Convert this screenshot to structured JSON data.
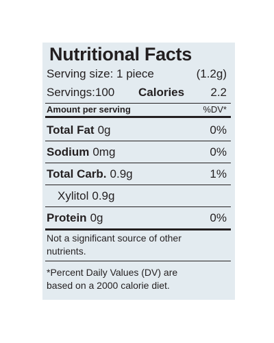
{
  "title": "Nutritional Facts",
  "serving": {
    "size": "Serving size: 1 piece",
    "weight": "(1.2g)",
    "servings": "Servings:100",
    "calories_label": "Calories",
    "calories_value": "2.2"
  },
  "table": {
    "header": {
      "amount": "Amount per serving",
      "dv": "%DV*"
    },
    "rows": [
      {
        "name": "Total Fat",
        "amount": "0g",
        "dv": "0%"
      },
      {
        "name": "Sodium",
        "amount": "0mg",
        "dv": "0%"
      },
      {
        "name": "Total Carb.",
        "amount": "0.9g",
        "dv": "1%"
      },
      {
        "name": "Xylitol",
        "amount": "0.9g"
      },
      {
        "name": "Protein",
        "amount": "0g",
        "dv": "0%"
      }
    ]
  },
  "notes": [
    "Not a significant source of other\nnutrients.",
    "*Percent Daily Values (DV) are\nbased on a 2000 calorie diet."
  ]
}
